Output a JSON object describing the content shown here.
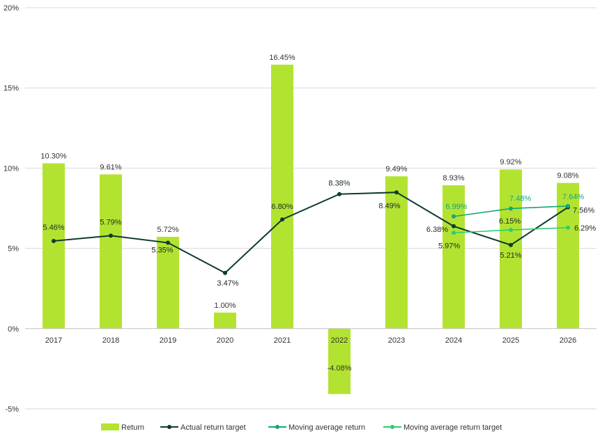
{
  "chart_data": {
    "type": "bar",
    "categories": [
      "2017",
      "2018",
      "2019",
      "2020",
      "2021",
      "2022",
      "2023",
      "2024",
      "2025",
      "2026"
    ],
    "ylim": [
      -5,
      20
    ],
    "yticks": [
      -5,
      0,
      5,
      10,
      15,
      20
    ],
    "ytick_labels": [
      "-5%",
      "0%",
      "5%",
      "10%",
      "15%",
      "20%"
    ],
    "grid": "horizontal",
    "legend_position": "bottom",
    "title": "",
    "xlabel": "",
    "ylabel": "",
    "series": [
      {
        "name": "Return",
        "kind": "bar",
        "color": "#b3e331",
        "values": [
          10.3,
          9.61,
          5.72,
          1.0,
          16.45,
          -4.08,
          9.49,
          8.93,
          9.92,
          9.08
        ],
        "labels": [
          "10.30%",
          "9.61%",
          "5.72%",
          "1.00%",
          "16.45%",
          "-4.08%",
          "9.49%",
          "8.93%",
          "9.92%",
          "9.08%"
        ]
      },
      {
        "name": "Actual return target",
        "kind": "line",
        "color": "#0f3b2e",
        "values": [
          5.46,
          5.79,
          5.35,
          3.47,
          6.8,
          8.38,
          8.49,
          6.38,
          5.21,
          7.56
        ],
        "labels": [
          "5.46%",
          "5.79%",
          "5.35%",
          "3.47%",
          "6.80%",
          "8.38%",
          "8.49%",
          "6.38%",
          "5.21%",
          "7.56%"
        ]
      },
      {
        "name": "Moving average return",
        "kind": "line",
        "color": "#12a87a",
        "values": [
          null,
          null,
          null,
          null,
          null,
          null,
          null,
          6.99,
          7.48,
          7.64
        ],
        "labels": [
          null,
          null,
          null,
          null,
          null,
          null,
          null,
          "6.99%",
          "7.48%",
          "7.64%"
        ]
      },
      {
        "name": "Moving average return target",
        "kind": "line",
        "color": "#2ecc71",
        "values": [
          null,
          null,
          null,
          null,
          null,
          null,
          null,
          5.97,
          6.15,
          6.29
        ],
        "labels": [
          null,
          null,
          null,
          null,
          null,
          null,
          null,
          "5.97%",
          "6.15%",
          "6.29%"
        ]
      }
    ]
  }
}
